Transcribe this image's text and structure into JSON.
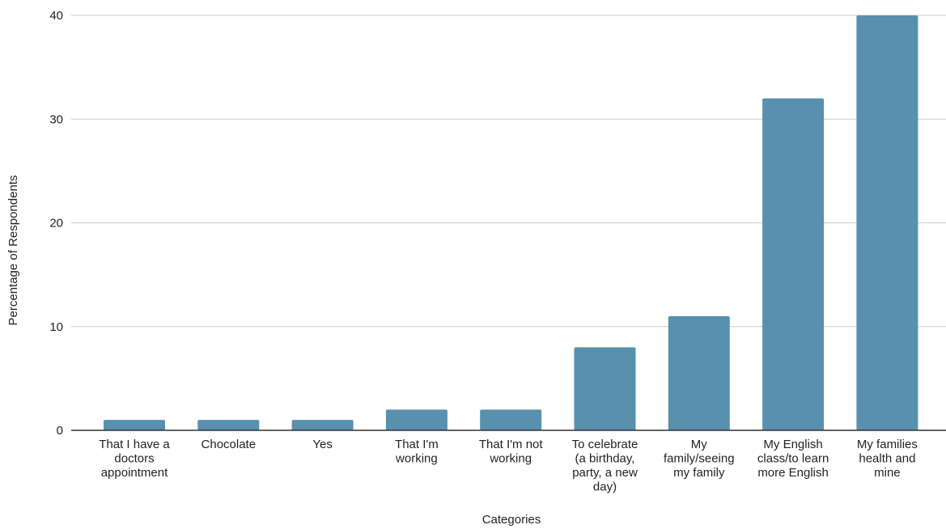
{
  "chart_data": {
    "type": "bar",
    "title": "",
    "xlabel": "Categories",
    "ylabel": "Percentage of Respondents",
    "ylim": [
      0,
      40
    ],
    "yticks": [
      0,
      10,
      20,
      30,
      40
    ],
    "grid": true,
    "bar_color": "#5890ad",
    "categories": [
      [
        "That I have a",
        "doctors",
        "appointment"
      ],
      [
        "Chocolate"
      ],
      [
        "Yes"
      ],
      [
        "That I'm",
        "working"
      ],
      [
        "That I'm not",
        "working"
      ],
      [
        "To celebrate",
        "(a birthday,",
        "party, a new",
        "day)"
      ],
      [
        "My",
        "family/seeing",
        "my family"
      ],
      [
        "My English",
        "class/to learn",
        "more English"
      ],
      [
        "My families",
        "health and",
        "mine"
      ]
    ],
    "values": [
      1,
      1,
      1,
      2,
      2,
      8,
      11,
      32,
      40
    ]
  }
}
